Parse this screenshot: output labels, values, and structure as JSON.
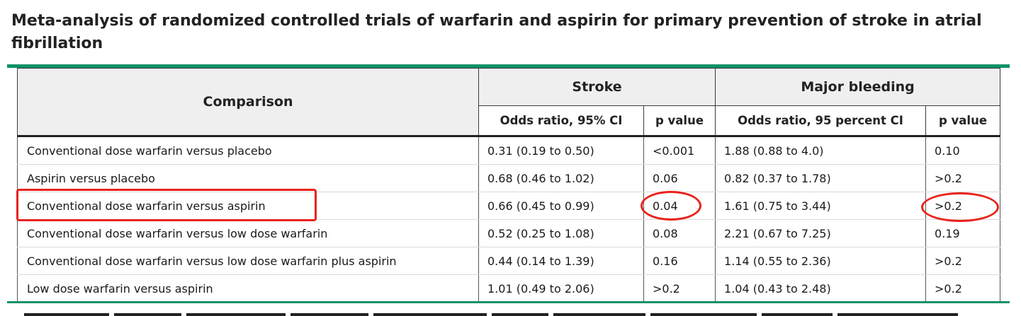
{
  "title": "Meta-analysis of randomized controlled trials of warfarin and aspirin for primary prevention of stroke in atrial fibrillation",
  "colors": {
    "accent_rule": "#0b9168",
    "highlight": "#e8231b"
  },
  "table": {
    "header": {
      "comparison": "Comparison",
      "stroke": "Stroke",
      "major_bleeding": "Major bleeding",
      "stroke_or": "Odds ratio, 95% CI",
      "stroke_p": "p value",
      "bleeding_or": "Odds ratio, 95 percent CI",
      "bleeding_p": "p value"
    },
    "rows": [
      {
        "comparison": "Conventional dose warfarin versus placebo",
        "stroke_or": "0.31 (0.19 to 0.50)",
        "stroke_p": "<0.001",
        "bleeding_or": "1.88 (0.88 to 4.0)",
        "bleeding_p": "0.10"
      },
      {
        "comparison": "Aspirin versus placebo",
        "stroke_or": "0.68 (0.46 to 1.02)",
        "stroke_p": "0.06",
        "bleeding_or": "0.82 (0.37 to 1.78)",
        "bleeding_p": ">0.2"
      },
      {
        "comparison": "Conventional dose warfarin versus aspirin",
        "stroke_or": "0.66 (0.45 to 0.99)",
        "stroke_p": "0.04",
        "bleeding_or": "1.61 (0.75 to 3.44)",
        "bleeding_p": ">0.2"
      },
      {
        "comparison": "Conventional dose warfarin versus low dose warfarin",
        "stroke_or": "0.52 (0.25 to 1.08)",
        "stroke_p": "0.08",
        "bleeding_or": "2.21 (0.67 to 7.25)",
        "bleeding_p": "0.19"
      },
      {
        "comparison": "Conventional dose warfarin versus low dose warfarin plus aspirin",
        "stroke_or": "0.44 (0.14 to 1.39)",
        "stroke_p": "0.16",
        "bleeding_or": "1.14 (0.55 to 2.36)",
        "bleeding_p": ">0.2"
      },
      {
        "comparison": "Low dose warfarin versus aspirin",
        "stroke_or": "1.01 (0.49 to 2.06)",
        "stroke_p": ">0.2",
        "bleeding_or": "1.04 (0.43 to 2.48)",
        "bleeding_p": ">0.2"
      }
    ]
  }
}
